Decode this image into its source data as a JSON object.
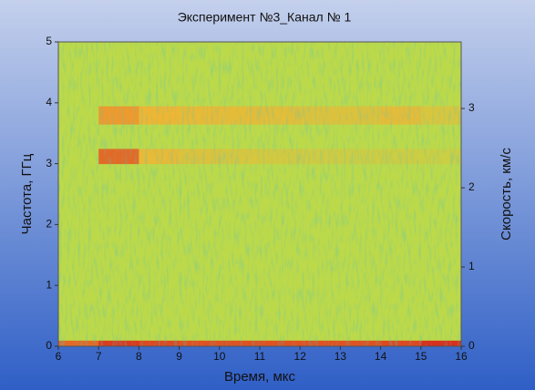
{
  "chart_data": {
    "type": "heatmap",
    "title": "Эксперимент №3_Канал № 1",
    "xlabel": "Время, мкс",
    "ylabel": "Частота, ГГц",
    "y2label": "Скорость, км/с",
    "xlim": [
      6,
      16
    ],
    "xticks": [
      6,
      7,
      8,
      9,
      10,
      11,
      12,
      13,
      14,
      15,
      16
    ],
    "ylim": [
      0,
      5
    ],
    "yticks": [
      0,
      1,
      2,
      3,
      4,
      5
    ],
    "y2lim": [
      0,
      3.84
    ],
    "y2ticks": [
      0,
      1,
      2,
      3
    ],
    "xbins": [
      6,
      7,
      8,
      9,
      10,
      11,
      12,
      13,
      14,
      15,
      16
    ],
    "ybins": [
      0,
      0.1,
      3.0,
      3.25,
      3.65,
      3.95,
      5
    ],
    "z": [
      [
        0.85,
        0.95,
        0.92,
        0.9,
        0.9,
        0.9,
        0.9,
        0.9,
        0.92,
        0.97
      ],
      [
        0.5,
        0.5,
        0.5,
        0.5,
        0.5,
        0.5,
        0.5,
        0.5,
        0.5,
        0.5
      ],
      [
        0.5,
        0.85,
        0.66,
        0.62,
        0.6,
        0.58,
        0.57,
        0.56,
        0.56,
        0.55
      ],
      [
        0.5,
        0.5,
        0.5,
        0.5,
        0.5,
        0.5,
        0.5,
        0.5,
        0.5,
        0.5
      ],
      [
        0.5,
        0.75,
        0.68,
        0.66,
        0.65,
        0.64,
        0.62,
        0.62,
        0.65,
        0.6
      ],
      [
        0.5,
        0.5,
        0.5,
        0.5,
        0.5,
        0.5,
        0.5,
        0.5,
        0.5,
        0.5
      ]
    ],
    "colorscale": [
      [
        0,
        "#2a9c8e"
      ],
      [
        0.5,
        "#bcd94a"
      ],
      [
        0.7,
        "#f2b232"
      ],
      [
        1,
        "#d4221a"
      ]
    ]
  }
}
